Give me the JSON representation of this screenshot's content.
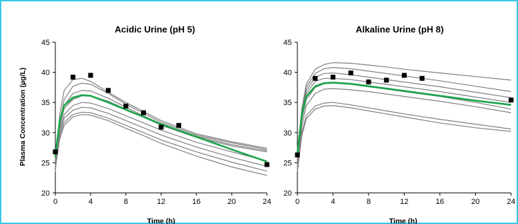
{
  "colors": {
    "frame": "#39c6e6",
    "sim": "#808080",
    "mean": "#1aa64a",
    "obs": "#000000"
  },
  "shared": {
    "ylabel": "Plasma Concentration (µg/L)"
  },
  "chart_data": [
    {
      "type": "line",
      "title": "Acidic Urine (pH 5)",
      "xlabel": "Time (h)",
      "ylabel": "Plasma Concentration (µg/L)",
      "xlim": [
        0,
        24
      ],
      "ylim": [
        20,
        45
      ],
      "xticks": [
        0,
        4,
        8,
        12,
        16,
        20,
        24
      ],
      "yticks": [
        20,
        25,
        30,
        35,
        40,
        45
      ],
      "grid": false,
      "simulated_profiles": [
        [
          [
            0,
            24
          ],
          [
            0.5,
            33
          ],
          [
            1,
            37
          ],
          [
            2,
            38.8
          ],
          [
            3,
            39
          ],
          [
            4,
            38.5
          ],
          [
            6,
            36.7
          ],
          [
            8,
            35
          ],
          [
            10,
            33.5
          ],
          [
            12,
            32
          ],
          [
            16,
            29.8
          ],
          [
            20,
            28.5
          ],
          [
            24,
            27.4
          ]
        ],
        [
          [
            0,
            23.5
          ],
          [
            0.5,
            31.5
          ],
          [
            1,
            35.5
          ],
          [
            2,
            37.7
          ],
          [
            3,
            38.2
          ],
          [
            4,
            38
          ],
          [
            6,
            36.5
          ],
          [
            8,
            34.7
          ],
          [
            10,
            33.2
          ],
          [
            12,
            31.7
          ],
          [
            16,
            29.6
          ],
          [
            20,
            28.3
          ],
          [
            24,
            27.2
          ]
        ],
        [
          [
            0,
            24
          ],
          [
            0.5,
            31.5
          ],
          [
            1,
            34.5
          ],
          [
            2,
            36.5
          ],
          [
            3,
            37
          ],
          [
            4,
            36.9
          ],
          [
            6,
            35.7
          ],
          [
            8,
            34.2
          ],
          [
            10,
            32.8
          ],
          [
            12,
            31.4
          ],
          [
            16,
            29.4
          ],
          [
            20,
            28
          ],
          [
            24,
            27
          ]
        ],
        [
          [
            0,
            25
          ],
          [
            0.5,
            31
          ],
          [
            1,
            34
          ],
          [
            2,
            35.5
          ],
          [
            3,
            36.1
          ],
          [
            4,
            36.1
          ],
          [
            6,
            35.2
          ],
          [
            8,
            33.9
          ],
          [
            10,
            32.6
          ],
          [
            12,
            31.2
          ],
          [
            16,
            29.2
          ],
          [
            20,
            27.8
          ],
          [
            24,
            26.8
          ]
        ],
        [
          [
            0,
            25.5
          ],
          [
            0.5,
            30.5
          ],
          [
            1,
            33
          ],
          [
            2,
            34.5
          ],
          [
            3,
            35
          ],
          [
            4,
            34.9
          ],
          [
            6,
            34
          ],
          [
            8,
            32.8
          ],
          [
            10,
            31.6
          ],
          [
            12,
            30.4
          ],
          [
            16,
            28.4
          ],
          [
            20,
            26.8
          ],
          [
            24,
            25.3
          ]
        ],
        [
          [
            0,
            25
          ],
          [
            0.5,
            30
          ],
          [
            1,
            32.4
          ],
          [
            2,
            33.7
          ],
          [
            3,
            34.2
          ],
          [
            4,
            34.1
          ],
          [
            6,
            33.2
          ],
          [
            8,
            32
          ],
          [
            10,
            30.8
          ],
          [
            12,
            29.6
          ],
          [
            16,
            27.6
          ],
          [
            20,
            25.9
          ],
          [
            24,
            24.4
          ]
        ],
        [
          [
            0,
            24.5
          ],
          [
            0.5,
            29.5
          ],
          [
            1,
            31.7
          ],
          [
            2,
            33
          ],
          [
            3,
            33.4
          ],
          [
            4,
            33.3
          ],
          [
            6,
            32.4
          ],
          [
            8,
            31.2
          ],
          [
            10,
            30
          ],
          [
            12,
            28.8
          ],
          [
            16,
            26.8
          ],
          [
            20,
            25.1
          ],
          [
            24,
            23.6
          ]
        ],
        [
          [
            0,
            24
          ],
          [
            0.5,
            29
          ],
          [
            1,
            31.2
          ],
          [
            2,
            32.6
          ],
          [
            3,
            33
          ],
          [
            4,
            32.9
          ],
          [
            6,
            32
          ],
          [
            8,
            30.7
          ],
          [
            10,
            29.5
          ],
          [
            12,
            28.2
          ],
          [
            16,
            26.1
          ],
          [
            20,
            24.3
          ],
          [
            24,
            22.9
          ]
        ]
      ],
      "mean_profile": [
        [
          0,
          26
        ],
        [
          0.5,
          32
        ],
        [
          1,
          34.5
        ],
        [
          2,
          35.8
        ],
        [
          3,
          36.2
        ],
        [
          4,
          36.1
        ],
        [
          6,
          35
        ],
        [
          8,
          33.8
        ],
        [
          10,
          32.6
        ],
        [
          12,
          31.4
        ],
        [
          16,
          29.3
        ],
        [
          20,
          27.2
        ],
        [
          24,
          25.2
        ]
      ],
      "observed": [
        [
          0,
          26.8
        ],
        [
          2,
          39.2
        ],
        [
          4,
          39.5
        ],
        [
          6,
          37
        ],
        [
          8,
          34.4
        ],
        [
          10,
          33.3
        ],
        [
          12,
          30.9
        ],
        [
          14,
          31.2
        ],
        [
          24,
          24.7
        ]
      ]
    },
    {
      "type": "line",
      "title": "Alkaline Urine (pH 8)",
      "xlabel": "Time (h)",
      "ylabel": "",
      "xlim": [
        0,
        24
      ],
      "ylim": [
        20,
        45
      ],
      "xticks": [
        0,
        4,
        8,
        12,
        16,
        20,
        24
      ],
      "yticks": [
        20,
        25,
        30,
        35,
        40,
        45
      ],
      "grid": false,
      "simulated_profiles": [
        [
          [
            0,
            25
          ],
          [
            0.5,
            34
          ],
          [
            1,
            38
          ],
          [
            2,
            40.5
          ],
          [
            3,
            41.3
          ],
          [
            4,
            41.6
          ],
          [
            6,
            41.5
          ],
          [
            8,
            41.2
          ],
          [
            10,
            40.9
          ],
          [
            12,
            40.5
          ],
          [
            16,
            39.9
          ],
          [
            20,
            39.3
          ],
          [
            24,
            38.7
          ]
        ],
        [
          [
            0,
            24.5
          ],
          [
            0.5,
            33.5
          ],
          [
            1,
            37.5
          ],
          [
            2,
            39.8
          ],
          [
            3,
            40.6
          ],
          [
            4,
            40.8
          ],
          [
            6,
            40.6
          ],
          [
            8,
            40.2
          ],
          [
            10,
            39.8
          ],
          [
            12,
            39.4
          ],
          [
            16,
            38.6
          ],
          [
            20,
            37.7
          ],
          [
            24,
            36.8
          ]
        ],
        [
          [
            0,
            24
          ],
          [
            0.5,
            33
          ],
          [
            1,
            37
          ],
          [
            2,
            39.2
          ],
          [
            3,
            39.8
          ],
          [
            4,
            39.9
          ],
          [
            6,
            39.6
          ],
          [
            8,
            39.2
          ],
          [
            10,
            38.8
          ],
          [
            12,
            38.4
          ],
          [
            16,
            37.6
          ],
          [
            20,
            36.7
          ],
          [
            24,
            35.8
          ]
        ],
        [
          [
            0,
            25.5
          ],
          [
            0.5,
            33
          ],
          [
            1,
            36.5
          ],
          [
            2,
            38.5
          ],
          [
            3,
            39
          ],
          [
            4,
            39
          ],
          [
            6,
            38.8
          ],
          [
            8,
            38.4
          ],
          [
            10,
            38
          ],
          [
            12,
            37.6
          ],
          [
            16,
            36.8
          ],
          [
            20,
            35.9
          ],
          [
            24,
            35
          ]
        ],
        [
          [
            0,
            24.5
          ],
          [
            0.5,
            32
          ],
          [
            1,
            35.5
          ],
          [
            2,
            37.5
          ],
          [
            3,
            38.1
          ],
          [
            4,
            38.2
          ],
          [
            6,
            38
          ],
          [
            8,
            37.6
          ],
          [
            10,
            37.2
          ],
          [
            12,
            36.8
          ],
          [
            16,
            36
          ],
          [
            20,
            35
          ],
          [
            24,
            33.9
          ]
        ],
        [
          [
            0,
            23.5
          ],
          [
            0.5,
            31
          ],
          [
            1,
            34.5
          ],
          [
            2,
            36.5
          ],
          [
            3,
            37.2
          ],
          [
            4,
            37.3
          ],
          [
            6,
            37.1
          ],
          [
            8,
            36.8
          ],
          [
            10,
            36.4
          ],
          [
            12,
            36
          ],
          [
            16,
            35.2
          ],
          [
            20,
            34.3
          ],
          [
            24,
            33.3
          ]
        ],
        [
          [
            0,
            24
          ],
          [
            0.5,
            30
          ],
          [
            1,
            32.8
          ],
          [
            2,
            34.4
          ],
          [
            3,
            34.9
          ],
          [
            4,
            35
          ],
          [
            6,
            34.6
          ],
          [
            8,
            34.1
          ],
          [
            10,
            33.6
          ],
          [
            12,
            33.1
          ],
          [
            16,
            32.2
          ],
          [
            20,
            31.4
          ],
          [
            24,
            30.6
          ]
        ],
        [
          [
            0,
            23.5
          ],
          [
            0.5,
            29.5
          ],
          [
            1,
            32.3
          ],
          [
            2,
            33.9
          ],
          [
            3,
            34.4
          ],
          [
            4,
            34.5
          ],
          [
            6,
            34.1
          ],
          [
            8,
            33.6
          ],
          [
            10,
            33.1
          ],
          [
            12,
            32.6
          ],
          [
            16,
            31.6
          ],
          [
            20,
            30.8
          ],
          [
            24,
            30.2
          ]
        ]
      ],
      "mean_profile": [
        [
          0,
          26.5
        ],
        [
          0.5,
          33
        ],
        [
          1,
          36
        ],
        [
          2,
          37.7
        ],
        [
          3,
          38.2
        ],
        [
          4,
          38.3
        ],
        [
          6,
          38.1
        ],
        [
          8,
          37.7
        ],
        [
          10,
          37.3
        ],
        [
          12,
          36.9
        ],
        [
          16,
          36.1
        ],
        [
          20,
          35.3
        ],
        [
          24,
          34.6
        ]
      ],
      "observed": [
        [
          0,
          26.3
        ],
        [
          2,
          39
        ],
        [
          4,
          39.2
        ],
        [
          6,
          39.9
        ],
        [
          8,
          38.4
        ],
        [
          10,
          38.7
        ],
        [
          12,
          39.5
        ],
        [
          14,
          39
        ],
        [
          24,
          35.4
        ]
      ]
    }
  ]
}
